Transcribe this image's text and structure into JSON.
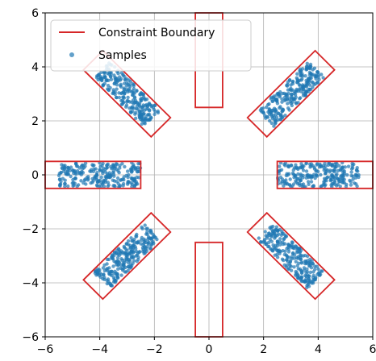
{
  "chart_data": {
    "type": "scatter",
    "title": "",
    "xlabel": "",
    "ylabel": "",
    "xlim": [
      -6,
      6
    ],
    "ylim": [
      -6,
      6
    ],
    "xticks": [
      -6,
      -4,
      -2,
      0,
      2,
      4,
      6
    ],
    "yticks": [
      -6,
      -4,
      -2,
      0,
      2,
      4,
      6
    ],
    "tick_labels_x": [
      "−6",
      "−4",
      "−2",
      "0",
      "2",
      "4",
      "6"
    ],
    "tick_labels_y": [
      "−6",
      "−4",
      "−2",
      "0",
      "2",
      "4",
      "6"
    ],
    "grid": true,
    "legend_position": "top-left",
    "legend": [
      "Constraint Boundary",
      "Samples"
    ],
    "colors": {
      "boundary": "#d62728",
      "samples": "#1f77b4",
      "grid": "#b0b0b0"
    },
    "series": [
      {
        "name": "Constraint Boundary",
        "kind": "polygons",
        "polygons": [
          [
            [
              2.5,
              0.5
            ],
            [
              6,
              0.5
            ],
            [
              6,
              -0.5
            ],
            [
              2.5,
              -0.5
            ]
          ],
          [
            [
              -6,
              0.5
            ],
            [
              -2.5,
              0.5
            ],
            [
              -2.5,
              -0.5
            ],
            [
              -6,
              -0.5
            ]
          ],
          [
            [
              -0.5,
              6
            ],
            [
              0.5,
              6
            ],
            [
              0.5,
              2.5
            ],
            [
              -0.5,
              2.5
            ]
          ],
          [
            [
              -0.5,
              -2.5
            ],
            [
              0.5,
              -2.5
            ],
            [
              0.5,
              -6
            ],
            [
              -0.5,
              -6
            ]
          ],
          [
            [
              1.41,
              2.12
            ],
            [
              2.12,
              1.41
            ],
            [
              4.6,
              3.89
            ],
            [
              3.89,
              4.6
            ]
          ],
          [
            [
              -1.41,
              2.12
            ],
            [
              -2.12,
              1.41
            ],
            [
              -4.6,
              3.89
            ],
            [
              -3.89,
              4.6
            ]
          ],
          [
            [
              1.41,
              -2.12
            ],
            [
              2.12,
              -1.41
            ],
            [
              4.6,
              -3.89
            ],
            [
              3.89,
              -4.6
            ]
          ],
          [
            [
              -1.41,
              -2.12
            ],
            [
              -2.12,
              -1.41
            ],
            [
              -4.6,
              -3.89
            ],
            [
              -3.89,
              -4.6
            ]
          ]
        ]
      },
      {
        "name": "Samples",
        "kind": "scatter_regions",
        "note_points_per_region": 250,
        "regions": [
          {
            "center": [
              4.0,
              0.0
            ],
            "along": [
              1,
              0
            ],
            "half_length": 1.5,
            "half_width": 0.45
          },
          {
            "center": [
              -4.0,
              0.0
            ],
            "along": [
              1,
              0
            ],
            "half_length": 1.5,
            "half_width": 0.45
          },
          {
            "center": [
              3.0,
              3.0
            ],
            "along": [
              0.7071,
              0.7071
            ],
            "half_length": 1.3,
            "half_width": 0.42
          },
          {
            "center": [
              -3.0,
              3.0
            ],
            "along": [
              -0.7071,
              0.7071
            ],
            "half_length": 1.3,
            "half_width": 0.42
          },
          {
            "center": [
              3.0,
              -3.0
            ],
            "along": [
              0.7071,
              -0.7071
            ],
            "half_length": 1.3,
            "half_width": 0.42
          },
          {
            "center": [
              -3.0,
              -3.0
            ],
            "along": [
              -0.7071,
              -0.7071
            ],
            "half_length": 1.3,
            "half_width": 0.42
          }
        ]
      }
    ]
  }
}
